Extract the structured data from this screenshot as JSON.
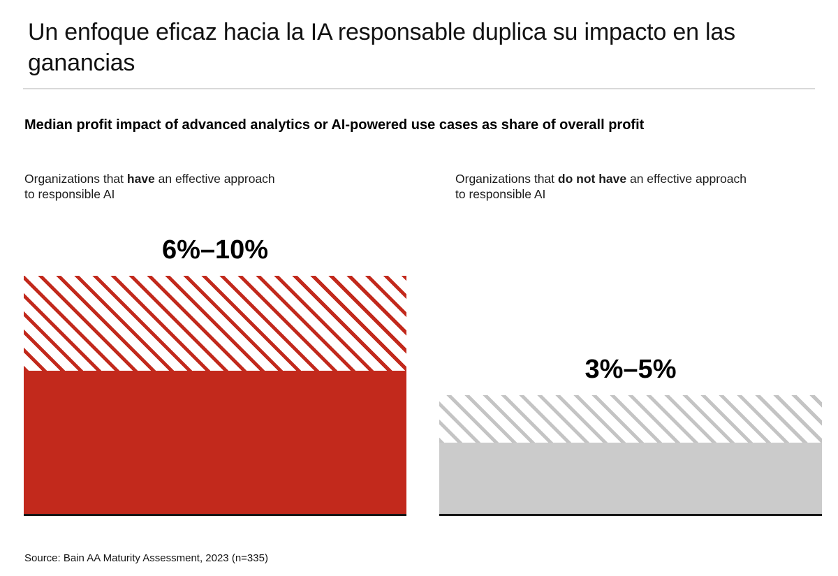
{
  "title": "Un enfoque eficaz hacia la IA responsable duplica su impacto en las ganancias",
  "subtitle": "Median profit impact of advanced analytics or AI-powered use cases as share of overall profit",
  "group_labels": [
    {
      "pre": "Organizations that ",
      "bold": "have",
      "post": " an effective approach",
      "line2": "to responsible AI"
    },
    {
      "pre": "Organizations that ",
      "bold": "do not have",
      "post": " an effective approach",
      "line2": "to responsible AI"
    }
  ],
  "source": "Source: Bain AA Maturity Assessment, 2023 (n=335)",
  "colors": {
    "accent_red": "#c2291c",
    "neutral_gray": "#cbcbcb",
    "gray_hatch_line": "#c4c4c4",
    "baseline_black": "#161616",
    "divider_gray": "#d9d9d9"
  },
  "chart_data": {
    "type": "bar",
    "title": "Median profit impact of advanced analytics or AI-powered use cases as share of overall profit",
    "categories": [
      "Organizations that have an effective approach to responsible AI",
      "Organizations that do not have an effective approach to responsible AI"
    ],
    "bars": [
      {
        "category": "Organizations that have an effective approach to responsible AI",
        "low_pct": 6,
        "high_pct": 10,
        "label": "6%–10%",
        "color": "#c2291c",
        "hatch_line_color": "#c2291c",
        "top_range_style": "diagonal-hatch"
      },
      {
        "category": "Organizations that do not have an effective approach to responsible AI",
        "low_pct": 3,
        "high_pct": 5,
        "label": "3%–5%",
        "color": "#cbcbcb",
        "hatch_line_color": "#c4c4c4",
        "top_range_style": "diagonal-hatch"
      }
    ],
    "unit": "% of overall profit",
    "ylim": [
      0,
      10
    ],
    "grid": false,
    "legend": false,
    "note": "Solid area = low end of median range; hatched area = low-to-high range"
  }
}
